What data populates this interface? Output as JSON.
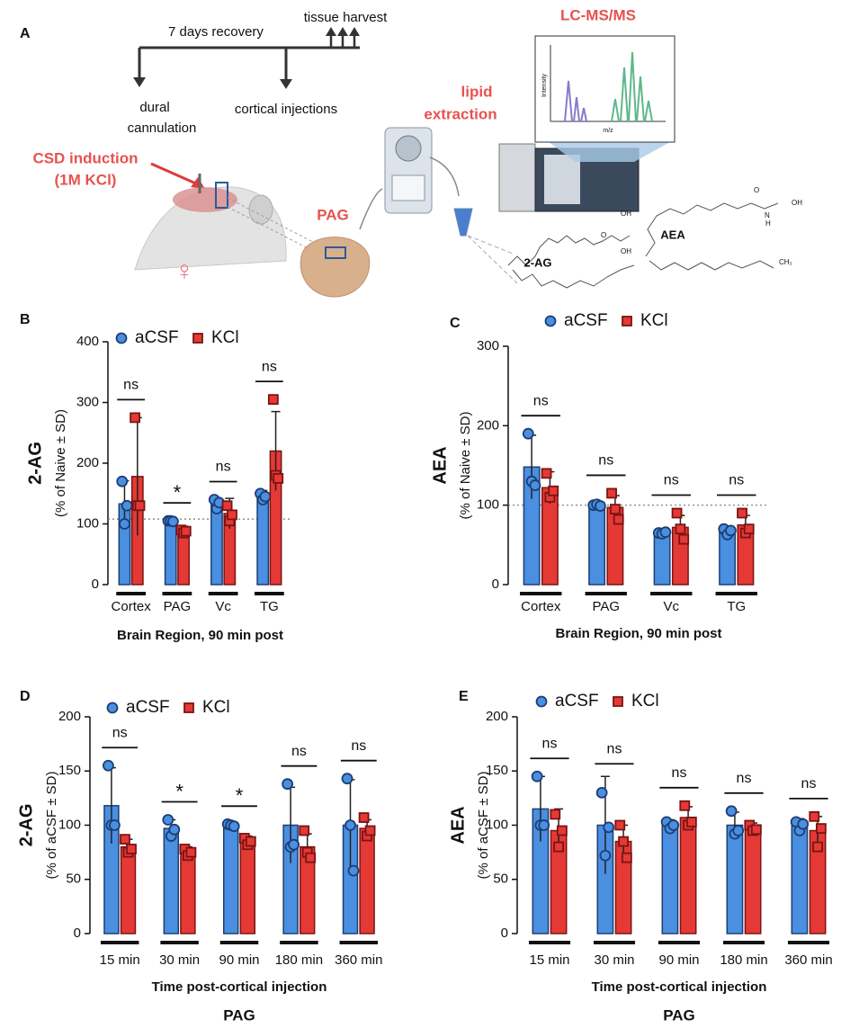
{
  "schematic": {
    "panel_label": "A",
    "timeline_top": "7 days recovery",
    "harvest": "tissue harvest",
    "cannulation_lines": [
      "dural",
      "cannulation"
    ],
    "injections": "cortical injections",
    "csd_lines": [
      "CSD induction",
      "(1M KCl)"
    ],
    "female": "♀",
    "pag": "PAG",
    "extraction_lines": [
      "lipid",
      "extraction"
    ],
    "lcms": "LC-MS/MS",
    "intensity": "Intensity",
    "mz": "m/z",
    "molecule_2ag": "2-AG",
    "molecule_aea": "AEA",
    "atoms_2ag": [
      "OH",
      "O",
      "OH"
    ],
    "atoms_aea": [
      "O",
      "N",
      "H",
      "OH",
      "CH₃"
    ]
  },
  "chart_data": [
    {
      "type": "bar",
      "panel_label": "B",
      "ylabel": "2-AG",
      "ylabel_sub": "(% of Naive ± SD)",
      "xlabel": "Brain Region, 90 min post",
      "categories": [
        "Cortex",
        "PAG",
        "Vc",
        "TG"
      ],
      "series": [
        {
          "name": "aCSF",
          "color": "#4a8fe0",
          "marker": "circle",
          "values": [
            133,
            105,
            133,
            145
          ],
          "errors": [
            38,
            3,
            10,
            10
          ],
          "points": [
            [
              170,
              100,
              130
            ],
            [
              105,
              105,
              104
            ],
            [
              140,
              125,
              135
            ],
            [
              150,
              140,
              145
            ]
          ]
        },
        {
          "name": "KCl",
          "color": "#e53935",
          "marker": "square",
          "values": [
            178,
            88,
            117,
            220
          ],
          "errors": [
            97,
            8,
            25,
            65
          ],
          "points": [
            [
              275,
              130,
              130
            ],
            [
              90,
              85,
              88
            ],
            [
              130,
              105,
              115
            ],
            [
              305,
              180,
              175
            ]
          ]
        }
      ],
      "significance": [
        "ns",
        "*",
        "ns",
        "ns"
      ],
      "reference_line": 108,
      "ylim": [
        0,
        400
      ],
      "yticks": [
        0,
        100,
        200,
        300,
        400
      ]
    },
    {
      "type": "bar",
      "panel_label": "C",
      "ylabel": "AEA",
      "ylabel_sub": "(% of Naive ± SD)",
      "xlabel": "Brain Region, 90 min post",
      "categories": [
        "Cortex",
        "PAG",
        "Vc",
        "TG"
      ],
      "series": [
        {
          "name": "aCSF",
          "color": "#4a8fe0",
          "marker": "circle",
          "values": [
            148,
            100,
            65,
            67
          ],
          "errors": [
            40,
            2,
            2,
            5
          ],
          "points": [
            [
              190,
              130,
              125
            ],
            [
              100,
              101,
              99
            ],
            [
              65,
              64,
              66
            ],
            [
              70,
              63,
              68
            ]
          ]
        },
        {
          "name": "KCl",
          "color": "#e53935",
          "marker": "square",
          "values": [
            122,
            97,
            72,
            75
          ],
          "errors": [
            20,
            15,
            15,
            12
          ],
          "points": [
            [
              140,
              110,
              118
            ],
            [
              115,
              95,
              82
            ],
            [
              90,
              70,
              57
            ],
            [
              90,
              65,
              70
            ]
          ]
        }
      ],
      "significance": [
        "ns",
        "ns",
        "ns",
        "ns"
      ],
      "reference_line": 100,
      "ylim": [
        0,
        300
      ],
      "yticks": [
        0,
        100,
        200,
        300
      ]
    },
    {
      "type": "bar",
      "panel_label": "D",
      "ylabel": "2-AG",
      "ylabel_sub": "(% of aCSF ± SD)",
      "xlabel": "Time post-cortical injection",
      "footer": "PAG",
      "categories": [
        "15 min",
        "30 min",
        "90 min",
        "180 min",
        "360 min"
      ],
      "series": [
        {
          "name": "aCSF",
          "color": "#4a8fe0",
          "marker": "circle",
          "values": [
            118,
            97,
            100,
            100,
            100
          ],
          "errors": [
            35,
            8,
            2,
            35,
            42
          ],
          "points": [
            [
              155,
              100,
              100
            ],
            [
              105,
              90,
              96
            ],
            [
              101,
              100,
              99
            ],
            [
              138,
              80,
              82
            ],
            [
              143,
              100,
              58
            ]
          ]
        },
        {
          "name": "KCl",
          "color": "#e53935",
          "marker": "square",
          "values": [
            80,
            75,
            85,
            80,
            97
          ],
          "errors": [
            7,
            5,
            5,
            12,
            8
          ],
          "points": [
            [
              87,
              75,
              78
            ],
            [
              78,
              72,
              75
            ],
            [
              88,
              82,
              85
            ],
            [
              95,
              75,
              70
            ],
            [
              107,
              90,
              95
            ]
          ]
        }
      ],
      "significance": [
        "ns",
        "*",
        "*",
        "ns",
        "ns"
      ],
      "ylim": [
        0,
        200
      ],
      "yticks": [
        0,
        50,
        100,
        150,
        200
      ]
    },
    {
      "type": "bar",
      "panel_label": "E",
      "ylabel": "AEA",
      "ylabel_sub": "(% of aCSF ± SD)",
      "xlabel": "Time post-cortical injection",
      "footer": "PAG",
      "categories": [
        "15 min",
        "30 min",
        "90 min",
        "180 min",
        "360 min"
      ],
      "series": [
        {
          "name": "aCSF",
          "color": "#4a8fe0",
          "marker": "circle",
          "values": [
            115,
            100,
            100,
            100,
            100
          ],
          "errors": [
            30,
            45,
            5,
            12,
            6
          ],
          "points": [
            [
              145,
              100,
              100
            ],
            [
              130,
              72,
              98
            ],
            [
              103,
              97,
              100
            ],
            [
              113,
              92,
              95
            ],
            [
              103,
              95,
              101
            ]
          ]
        },
        {
          "name": "KCl",
          "color": "#e53935",
          "marker": "square",
          "values": [
            95,
            85,
            107,
            97,
            95
          ],
          "errors": [
            20,
            15,
            10,
            5,
            13
          ],
          "points": [
            [
              110,
              80,
              95
            ],
            [
              100,
              85,
              70
            ],
            [
              118,
              100,
              103
            ],
            [
              100,
              95,
              96
            ],
            [
              108,
              80,
              97
            ]
          ]
        }
      ],
      "significance": [
        "ns",
        "ns",
        "ns",
        "ns",
        "ns"
      ],
      "ylim": [
        0,
        200
      ],
      "yticks": [
        0,
        50,
        100,
        150,
        200
      ]
    }
  ]
}
